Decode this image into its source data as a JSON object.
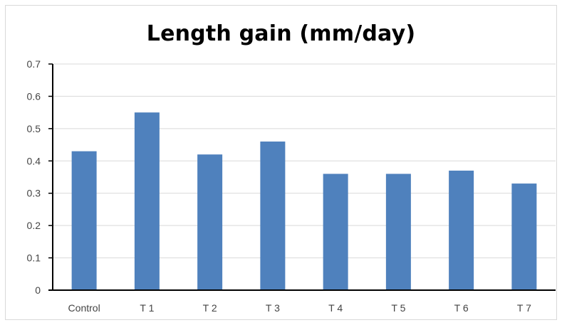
{
  "chart_data": {
    "type": "bar",
    "title": "Length gain (mm/day)",
    "xlabel": "",
    "ylabel": "",
    "categories": [
      "Control",
      "T 1",
      "T 2",
      "T 3",
      "T 4",
      "T 5",
      "T 6",
      "T 7"
    ],
    "values": [
      0.43,
      0.55,
      0.42,
      0.46,
      0.36,
      0.36,
      0.37,
      0.33
    ],
    "ylim": [
      0,
      0.7
    ],
    "yticks": [
      "0",
      "0.1",
      "0.2",
      "0.3",
      "0.4",
      "0.5",
      "0.6",
      "0.7"
    ],
    "grid": true,
    "legend": "none",
    "colors": {
      "bar": "#4f81bd",
      "grid": "#d9d9d9",
      "axis": "#000000"
    }
  }
}
